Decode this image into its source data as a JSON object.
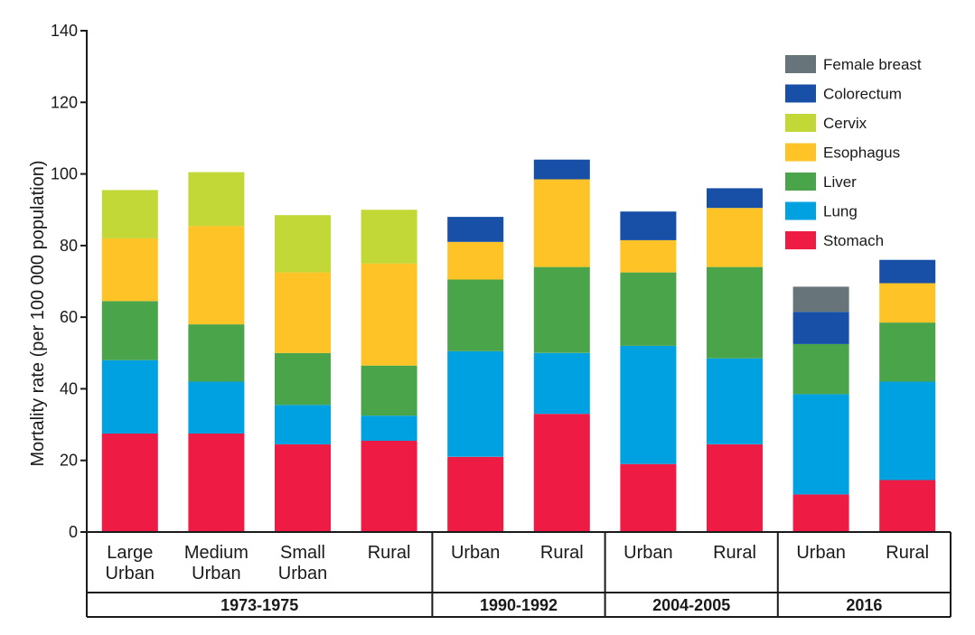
{
  "chart_data": {
    "type": "bar",
    "stacked": true,
    "ylabel": "Mortality rate (per 100 000 population)",
    "ylim": [
      0,
      140
    ],
    "yticks": [
      0,
      20,
      40,
      60,
      80,
      100,
      120,
      140
    ],
    "grid": false,
    "legend_position": "top-right",
    "legend_order": [
      "Female breast",
      "Colorectum",
      "Cervix",
      "Esophagus",
      "Liver",
      "Lung",
      "Stomach"
    ],
    "categories": [
      {
        "label": [
          "Large",
          "Urban"
        ],
        "period": "1973-1975"
      },
      {
        "label": [
          "Medium",
          "Urban"
        ],
        "period": "1973-1975"
      },
      {
        "label": [
          "Small",
          "Urban"
        ],
        "period": "1973-1975"
      },
      {
        "label": [
          "Rural"
        ],
        "period": "1973-1975"
      },
      {
        "label": [
          "Urban"
        ],
        "period": "1990-1992"
      },
      {
        "label": [
          "Rural"
        ],
        "period": "1990-1992"
      },
      {
        "label": [
          "Urban"
        ],
        "period": "2004-2005"
      },
      {
        "label": [
          "Rural"
        ],
        "period": "2004-2005"
      },
      {
        "label": [
          "Urban"
        ],
        "period": "2016"
      },
      {
        "label": [
          "Rural"
        ],
        "period": "2016"
      }
    ],
    "periods": [
      {
        "name": "1973-1975",
        "count": 4
      },
      {
        "name": "1990-1992",
        "count": 2
      },
      {
        "name": "2004-2005",
        "count": 2
      },
      {
        "name": "2016",
        "count": 2
      }
    ],
    "series": [
      {
        "name": "Stomach",
        "color": "#EE1B45",
        "values": [
          27.5,
          27.5,
          24.5,
          25.5,
          21,
          33,
          19,
          24.5,
          10.5,
          14.5
        ]
      },
      {
        "name": "Lung",
        "color": "#00A1E0",
        "values": [
          20.5,
          14.5,
          11,
          7,
          29.5,
          17,
          33,
          24,
          28,
          27.5
        ]
      },
      {
        "name": "Liver",
        "color": "#4AA54A",
        "values": [
          16.5,
          16,
          14.5,
          14,
          20,
          24,
          20.5,
          25.5,
          14,
          16.5
        ]
      },
      {
        "name": "Esophagus",
        "color": "#FEC427",
        "values": [
          17.5,
          27.5,
          22.5,
          28.5,
          10.5,
          24.5,
          9,
          16.5,
          0,
          11
        ]
      },
      {
        "name": "Cervix",
        "color": "#C1D836",
        "values": [
          13.5,
          15,
          16,
          15,
          0,
          0,
          0,
          0,
          0,
          0
        ]
      },
      {
        "name": "Colorectum",
        "color": "#1750A6",
        "values": [
          0,
          0,
          0,
          0,
          7,
          5.5,
          8,
          5.5,
          9,
          6.5
        ]
      },
      {
        "name": "Female breast",
        "color": "#67757B",
        "values": [
          0,
          0,
          0,
          0,
          0,
          0,
          0,
          0,
          7,
          0
        ]
      }
    ]
  }
}
